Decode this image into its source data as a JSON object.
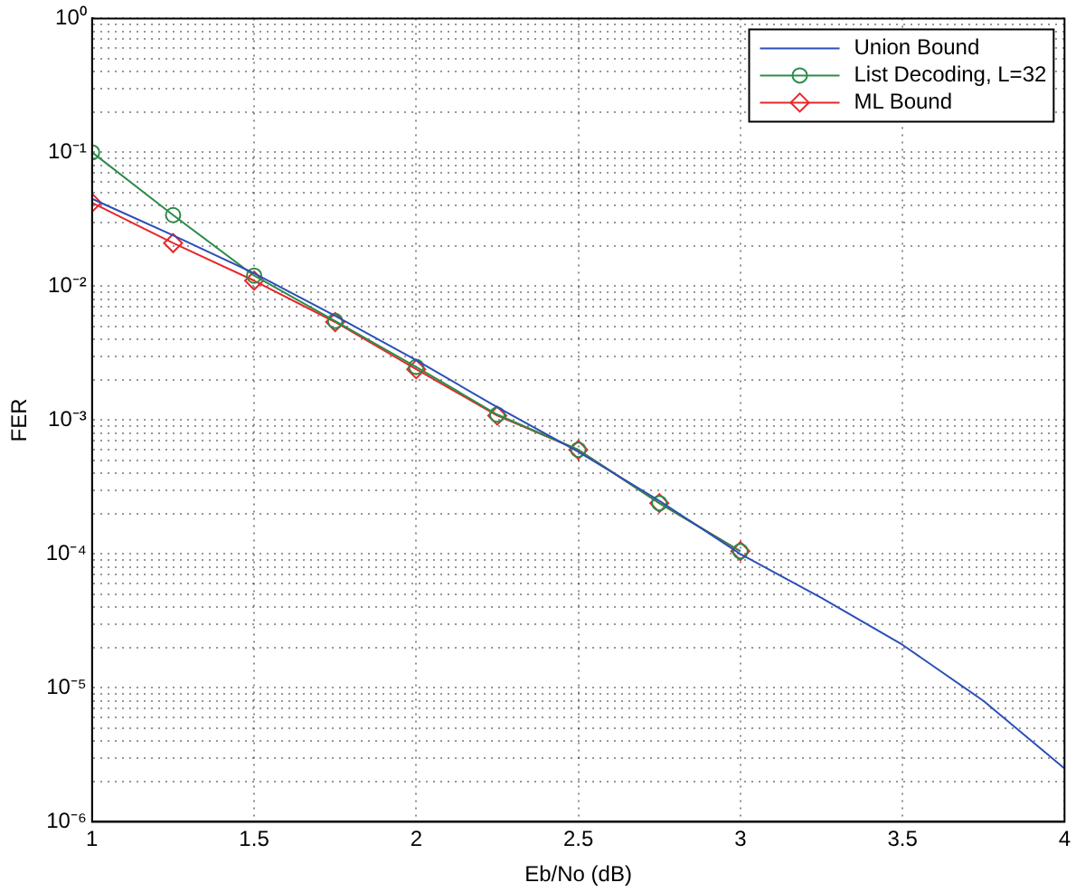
{
  "chart_data": {
    "type": "line",
    "xlabel": "Eb/No (dB)",
    "ylabel": "FER",
    "log": "y",
    "grid": true,
    "legend": "top right",
    "xlim": [
      1,
      4
    ],
    "xticks": [
      1,
      1.5,
      2,
      2.5,
      3,
      3.5,
      4
    ],
    "ylim": [
      1e-06,
      1
    ],
    "yticks": [
      {
        "value": 1e-06,
        "label": "10⁻⁶"
      },
      {
        "value": 1e-05,
        "label": "10⁻⁵"
      },
      {
        "value": 0.0001,
        "label": "10⁻⁴"
      },
      {
        "value": 0.001,
        "label": "10⁻³"
      },
      {
        "value": 0.01,
        "label": "10⁻²"
      },
      {
        "value": 0.1,
        "label": "10⁻¹"
      },
      {
        "value": 1,
        "label": "10⁰"
      }
    ],
    "series": [
      {
        "name": "Union Bound",
        "color": "#2b4fb8",
        "marker": "none",
        "x": [
          1,
          1.25,
          1.5,
          1.75,
          2,
          2.25,
          2.5,
          2.75,
          3,
          3.25,
          3.5,
          3.75,
          4
        ],
        "values": [
          0.045,
          0.024,
          0.0125,
          0.006,
          0.0028,
          0.00125,
          0.00058,
          0.00025,
          0.0001,
          4.7e-05,
          2.1e-05,
          8e-06,
          2.5e-06
        ]
      },
      {
        "name": "List Decoding, L=32",
        "color": "#2e8b4a",
        "marker": "circle",
        "x": [
          1,
          1.25,
          1.5,
          1.75,
          2,
          2.25,
          2.5,
          2.75,
          3
        ],
        "values": [
          0.1,
          0.034,
          0.012,
          0.0055,
          0.0025,
          0.0011,
          0.0006,
          0.00024,
          0.000105
        ]
      },
      {
        "name": "ML Bound",
        "color": "#e8262a",
        "marker": "diamond",
        "x": [
          1,
          1.25,
          1.5,
          1.75,
          2,
          2.25,
          2.5,
          2.75,
          3
        ],
        "values": [
          0.042,
          0.021,
          0.011,
          0.0054,
          0.0024,
          0.00108,
          0.0006,
          0.00024,
          0.000105
        ]
      }
    ]
  }
}
